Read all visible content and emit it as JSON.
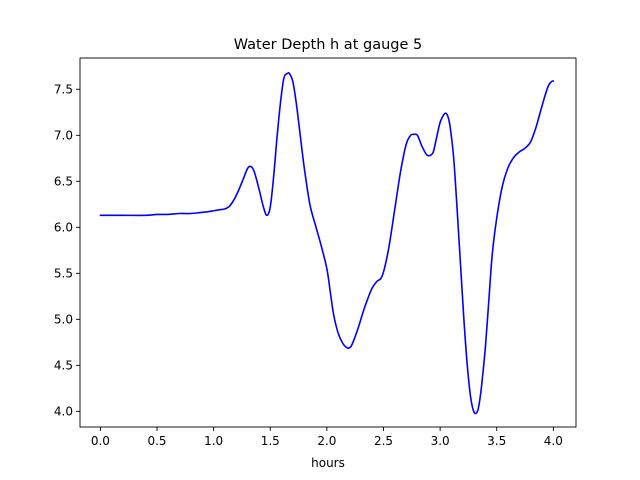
{
  "chart_data": {
    "type": "line",
    "title": "Water Depth h at gauge 5",
    "xlabel": "hours",
    "ylabel": "",
    "xlim": [
      -0.18,
      4.2
    ],
    "ylim": [
      3.83,
      7.84
    ],
    "grid": false,
    "x_ticks": [
      0.0,
      0.5,
      1.0,
      1.5,
      2.0,
      2.5,
      3.0,
      3.5,
      4.0
    ],
    "x_tick_labels": [
      "0.0",
      "0.5",
      "1.0",
      "1.5",
      "2.0",
      "2.5",
      "3.0",
      "3.5",
      "4.0"
    ],
    "y_ticks": [
      4.0,
      4.5,
      5.0,
      5.5,
      6.0,
      6.5,
      7.0,
      7.5
    ],
    "y_tick_labels": [
      "4.0",
      "4.5",
      "5.0",
      "5.5",
      "6.0",
      "6.5",
      "7.0",
      "7.5"
    ],
    "line_color": "#0000ff",
    "series": [
      {
        "x": [
          0.0,
          0.2,
          0.4,
          0.5,
          0.6,
          0.7,
          0.8,
          0.88,
          0.95,
          1.0,
          1.05,
          1.1,
          1.14,
          1.18,
          1.22,
          1.26,
          1.3,
          1.33,
          1.36,
          1.4,
          1.44,
          1.47,
          1.5,
          1.53,
          1.56,
          1.59,
          1.62,
          1.65,
          1.67,
          1.7,
          1.73,
          1.76,
          1.8,
          1.85,
          1.9,
          1.95,
          2.0,
          2.03,
          2.06,
          2.1,
          2.14,
          2.18,
          2.21,
          2.24,
          2.28,
          2.32,
          2.36,
          2.4,
          2.44,
          2.48,
          2.51,
          2.55,
          2.6,
          2.65,
          2.7,
          2.74,
          2.77,
          2.8,
          2.84,
          2.88,
          2.91,
          2.94,
          2.97,
          3.0,
          3.03,
          3.05,
          3.07,
          3.09,
          3.12,
          3.15,
          3.18,
          3.21,
          3.24,
          3.27,
          3.3,
          3.33,
          3.35,
          3.37,
          3.4,
          3.43,
          3.46,
          3.5,
          3.55,
          3.6,
          3.65,
          3.7,
          3.75,
          3.8,
          3.85,
          3.9,
          3.95,
          3.98,
          4.0
        ],
        "y": [
          6.13,
          6.13,
          6.13,
          6.14,
          6.14,
          6.15,
          6.15,
          6.16,
          6.17,
          6.18,
          6.19,
          6.2,
          6.23,
          6.3,
          6.4,
          6.52,
          6.64,
          6.66,
          6.6,
          6.42,
          6.22,
          6.13,
          6.22,
          6.55,
          6.98,
          7.35,
          7.62,
          7.67,
          7.67,
          7.58,
          7.35,
          7.05,
          6.65,
          6.25,
          6.02,
          5.8,
          5.55,
          5.3,
          5.05,
          4.85,
          4.74,
          4.69,
          4.7,
          4.78,
          4.92,
          5.08,
          5.22,
          5.34,
          5.41,
          5.45,
          5.56,
          5.8,
          6.2,
          6.6,
          6.9,
          7.0,
          7.01,
          7.0,
          6.88,
          6.79,
          6.78,
          6.82,
          6.98,
          7.14,
          7.22,
          7.24,
          7.2,
          7.08,
          6.75,
          6.2,
          5.6,
          5.0,
          4.5,
          4.15,
          3.99,
          4.0,
          4.12,
          4.32,
          4.7,
          5.2,
          5.7,
          6.1,
          6.45,
          6.65,
          6.76,
          6.82,
          6.86,
          6.93,
          7.1,
          7.32,
          7.52,
          7.58,
          7.59
        ]
      }
    ]
  }
}
